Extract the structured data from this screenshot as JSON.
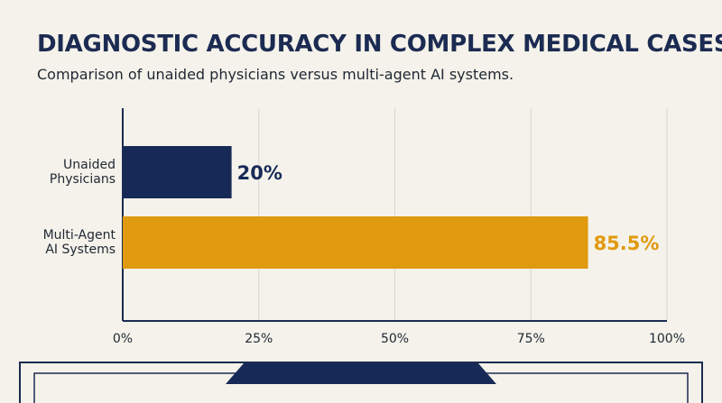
{
  "colors": {
    "background": "#f4f2ea",
    "navy": "#172a57",
    "gold": "#e09a0f",
    "grid": "#d6d4cc",
    "axis": "#1c2b52",
    "text": "#1f2733"
  },
  "header": {
    "title": "DIAGNOSTIC ACCURACY IN COMPLEX MEDICAL CASES",
    "subtitle": "Comparison of unaided physicians versus multi-agent AI systems."
  },
  "chart_data": {
    "type": "bar",
    "orientation": "horizontal",
    "categories": [
      [
        "Unaided",
        "Physicians"
      ],
      [
        "Multi-Agent",
        "AI Systems"
      ]
    ],
    "values": [
      20,
      85.5
    ],
    "value_labels": [
      "20%",
      "85.5%"
    ],
    "bar_colors": [
      "#172a57",
      "#e09a0f"
    ],
    "xlim": [
      0,
      100
    ],
    "xticks": [
      0,
      25,
      50,
      75,
      100
    ],
    "xtick_labels": [
      "0%",
      "25%",
      "50%",
      "75%",
      "100%"
    ],
    "grid": true
  }
}
